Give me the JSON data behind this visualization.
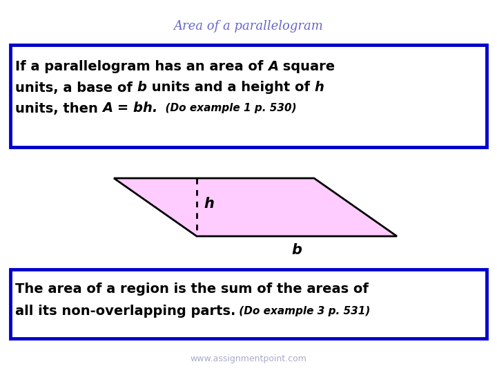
{
  "title": "Area of a parallelogram",
  "title_color": "#6666cc",
  "title_fontsize": 13,
  "box_border_color": "#0000cc",
  "box_fill_color": "#ffffff",
  "parallelogram_fill": "#ffccff",
  "parallelogram_border": "#000000",
  "dashed_line_color": "#000000",
  "label_h": "h",
  "label_b": "b",
  "website": "www.assignmentpoint.com",
  "website_color": "#aaaacc",
  "bg_color": "#ffffff",
  "text_fontsize": 14,
  "example_fontsize": 11
}
